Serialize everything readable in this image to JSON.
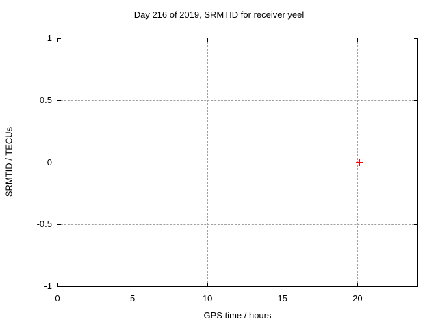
{
  "chart_data": {
    "type": "scatter",
    "title": "Day 216 of 2019, SRMTID for receiver yeel",
    "xlabel": "GPS time / hours",
    "ylabel": "SRMTID / TECUs",
    "xlim": [
      0,
      24
    ],
    "ylim": [
      -1,
      1
    ],
    "xticks": [
      0,
      5,
      10,
      15,
      20
    ],
    "xtick_labels": [
      "0",
      "5",
      "10",
      "15",
      "20"
    ],
    "yticks": [
      1,
      0.5,
      0,
      -0.5,
      -1
    ],
    "ytick_labels": [
      "1",
      "0.5",
      "0",
      "-0.5",
      "-1"
    ],
    "grid": true,
    "legend": "none",
    "series": [
      {
        "name": "SRMTID",
        "marker": "plus",
        "color": "#ff0000",
        "points": [
          [
            20.15,
            0.0
          ]
        ]
      }
    ],
    "colors": {
      "background": "#ffffff",
      "axis": "#000000",
      "grid": "#a0a0a0",
      "text": "#000000",
      "marker": "#ff0000"
    }
  }
}
